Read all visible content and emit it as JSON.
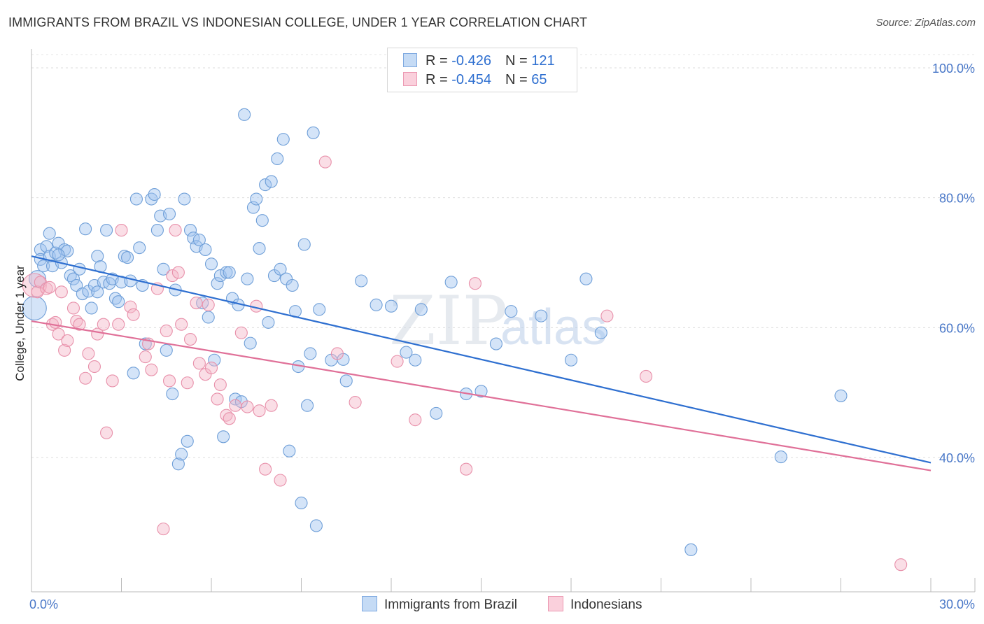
{
  "header": {
    "title": "IMMIGRANTS FROM BRAZIL VS INDONESIAN COLLEGE, UNDER 1 YEAR CORRELATION CHART",
    "source": "Source: ZipAtlas.com"
  },
  "watermark": {
    "zip": "ZIP",
    "atlas": "atlas"
  },
  "legend": {
    "rows": [
      {
        "r_label": "R = ",
        "r_value": "-0.426",
        "n_label": "N = ",
        "n_value": "121",
        "color": "#9fc3ef"
      },
      {
        "r_label": "R = ",
        "r_value": "-0.454",
        "n_label": "N = ",
        "n_value": "65",
        "color": "#f4b6c8"
      }
    ]
  },
  "bottom_legend": {
    "items": [
      {
        "label": "Immigrants from Brazil",
        "color": "#9fc3ef"
      },
      {
        "label": "Indonesians",
        "color": "#f4b6c8"
      }
    ]
  },
  "chart_data": {
    "type": "scatter",
    "title": "IMMIGRANTS FROM BRAZIL VS INDONESIAN COLLEGE, UNDER 1 YEAR CORRELATION CHART",
    "xlabel": "",
    "ylabel": "College, Under 1 year",
    "xlim": [
      0,
      30
    ],
    "ylim": [
      22,
      103
    ],
    "x_tick_labels": [
      "0.0%",
      "30.0%"
    ],
    "y_ticks": [
      40,
      60,
      80,
      100
    ],
    "y_tick_labels": [
      "40.0%",
      "60.0%",
      "80.0%",
      "100.0%"
    ],
    "grid": true,
    "legend_position": "top-center",
    "series": [
      {
        "name": "Immigrants from Brazil",
        "color": "#9fc3ef",
        "stroke": "#6f9fd8",
        "line_color": "#2e6fd0",
        "trend": {
          "x": [
            0,
            30
          ],
          "y": [
            71.0,
            39.2
          ]
        },
        "points": [
          [
            0.1,
            63
          ],
          [
            0.2,
            67.5
          ],
          [
            0.3,
            72
          ],
          [
            0.3,
            70.5
          ],
          [
            0.4,
            69.5
          ],
          [
            0.5,
            72.5
          ],
          [
            0.6,
            74.5
          ],
          [
            0.6,
            71
          ],
          [
            0.7,
            69.5
          ],
          [
            0.8,
            71.5
          ],
          [
            0.9,
            73
          ],
          [
            1.0,
            70
          ],
          [
            1.1,
            72
          ],
          [
            1.2,
            71.8
          ],
          [
            1.3,
            68
          ],
          [
            1.4,
            67.5
          ],
          [
            1.5,
            66.5
          ],
          [
            1.6,
            69
          ],
          [
            1.7,
            65.2
          ],
          [
            1.8,
            75.2
          ],
          [
            1.9,
            65.6
          ],
          [
            2.0,
            63
          ],
          [
            2.1,
            66.5
          ],
          [
            2.2,
            71
          ],
          [
            2.3,
            69.4
          ],
          [
            2.4,
            67
          ],
          [
            2.5,
            75
          ],
          [
            2.6,
            66.8
          ],
          [
            2.7,
            67.5
          ],
          [
            2.8,
            64.5
          ],
          [
            2.9,
            64
          ],
          [
            3.0,
            67
          ],
          [
            3.1,
            71
          ],
          [
            3.2,
            70.8
          ],
          [
            3.3,
            67.2
          ],
          [
            3.4,
            53
          ],
          [
            3.5,
            79.8
          ],
          [
            3.6,
            72.3
          ],
          [
            3.7,
            66.5
          ],
          [
            3.8,
            57.5
          ],
          [
            4.0,
            79.8
          ],
          [
            4.1,
            80.5
          ],
          [
            4.2,
            75
          ],
          [
            4.3,
            77.2
          ],
          [
            4.4,
            69
          ],
          [
            4.5,
            56.5
          ],
          [
            4.6,
            77.5
          ],
          [
            4.7,
            49.8
          ],
          [
            4.8,
            65.8
          ],
          [
            4.9,
            39
          ],
          [
            5.0,
            40.5
          ],
          [
            5.1,
            79.8
          ],
          [
            5.2,
            42.5
          ],
          [
            5.3,
            75
          ],
          [
            5.4,
            73.8
          ],
          [
            5.5,
            72.5
          ],
          [
            5.6,
            73.5
          ],
          [
            5.7,
            63.8
          ],
          [
            5.8,
            72
          ],
          [
            5.9,
            61.6
          ],
          [
            6.0,
            69.8
          ],
          [
            6.1,
            55
          ],
          [
            6.2,
            66.8
          ],
          [
            6.3,
            68
          ],
          [
            6.4,
            43.2
          ],
          [
            6.5,
            68.5
          ],
          [
            6.6,
            68.5
          ],
          [
            6.7,
            64.5
          ],
          [
            6.8,
            49
          ],
          [
            6.9,
            63.5
          ],
          [
            7.0,
            48.6
          ],
          [
            7.1,
            92.8
          ],
          [
            7.2,
            67.5
          ],
          [
            7.3,
            57.6
          ],
          [
            7.4,
            78.5
          ],
          [
            7.5,
            79.8
          ],
          [
            7.6,
            72.2
          ],
          [
            7.7,
            76.5
          ],
          [
            7.8,
            82
          ],
          [
            7.9,
            60.8
          ],
          [
            8.0,
            82.5
          ],
          [
            8.1,
            68
          ],
          [
            8.2,
            86
          ],
          [
            8.3,
            69
          ],
          [
            8.4,
            89
          ],
          [
            8.5,
            67.5
          ],
          [
            8.6,
            41
          ],
          [
            8.7,
            66.5
          ],
          [
            8.8,
            62.5
          ],
          [
            8.9,
            54
          ],
          [
            9.0,
            33
          ],
          [
            9.1,
            72.8
          ],
          [
            9.2,
            48
          ],
          [
            9.3,
            56
          ],
          [
            9.4,
            90
          ],
          [
            9.5,
            29.5
          ],
          [
            9.6,
            62.8
          ],
          [
            10.0,
            55
          ],
          [
            10.5,
            51.8
          ],
          [
            11.0,
            67.2
          ],
          [
            11.5,
            63.5
          ],
          [
            12.0,
            63.3
          ],
          [
            12.5,
            56.2
          ],
          [
            12.8,
            55
          ],
          [
            13.0,
            62.8
          ],
          [
            13.5,
            46.8
          ],
          [
            14.0,
            67
          ],
          [
            14.5,
            49.8
          ],
          [
            15.0,
            50.2
          ],
          [
            15.5,
            57.5
          ],
          [
            16.0,
            62.5
          ],
          [
            17.0,
            61.8
          ],
          [
            18.0,
            55
          ],
          [
            18.5,
            67.5
          ],
          [
            19.0,
            59.2
          ],
          [
            22.0,
            25.8
          ],
          [
            25.0,
            40.1
          ],
          [
            27.0,
            49.5
          ],
          [
            10.4,
            55.1
          ],
          [
            2.2,
            65.5
          ],
          [
            0.9,
            71.2
          ]
        ]
      },
      {
        "name": "Indonesians",
        "color": "#f4b6c8",
        "stroke": "#e890aa",
        "line_color": "#e07098",
        "trend": {
          "x": [
            0,
            30
          ],
          "y": [
            61.0,
            38.0
          ]
        },
        "points": [
          [
            0.1,
            66.5
          ],
          [
            0.2,
            65.5
          ],
          [
            0.3,
            67
          ],
          [
            0.5,
            66
          ],
          [
            0.6,
            66.2
          ],
          [
            0.7,
            60.5
          ],
          [
            0.8,
            60.8
          ],
          [
            0.9,
            59
          ],
          [
            1.0,
            65.5
          ],
          [
            1.1,
            56.5
          ],
          [
            1.2,
            58
          ],
          [
            1.4,
            63
          ],
          [
            1.5,
            61
          ],
          [
            1.6,
            60.5
          ],
          [
            1.8,
            52.2
          ],
          [
            1.9,
            56
          ],
          [
            2.1,
            54
          ],
          [
            2.2,
            59
          ],
          [
            2.4,
            60.5
          ],
          [
            2.5,
            43.8
          ],
          [
            2.7,
            51.8
          ],
          [
            2.9,
            60.5
          ],
          [
            3.0,
            75
          ],
          [
            3.3,
            63.2
          ],
          [
            3.4,
            62
          ],
          [
            3.8,
            55.5
          ],
          [
            3.9,
            57.5
          ],
          [
            4.0,
            53.5
          ],
          [
            4.2,
            66
          ],
          [
            4.4,
            29
          ],
          [
            4.5,
            59.5
          ],
          [
            4.6,
            51.8
          ],
          [
            4.7,
            68
          ],
          [
            4.8,
            75
          ],
          [
            4.9,
            68.5
          ],
          [
            5.0,
            60.5
          ],
          [
            5.2,
            51.5
          ],
          [
            5.3,
            58.2
          ],
          [
            5.5,
            63.8
          ],
          [
            5.6,
            54.5
          ],
          [
            5.8,
            52.8
          ],
          [
            5.9,
            63.5
          ],
          [
            6.0,
            53.8
          ],
          [
            6.2,
            49
          ],
          [
            6.3,
            51.2
          ],
          [
            6.5,
            46.5
          ],
          [
            6.6,
            46
          ],
          [
            6.8,
            48
          ],
          [
            7.0,
            59.2
          ],
          [
            7.2,
            47.8
          ],
          [
            7.5,
            63.3
          ],
          [
            7.6,
            47.2
          ],
          [
            7.8,
            38.2
          ],
          [
            8.0,
            48
          ],
          [
            8.3,
            36.5
          ],
          [
            9.8,
            85.5
          ],
          [
            10.2,
            56
          ],
          [
            10.8,
            48.5
          ],
          [
            12.2,
            54.8
          ],
          [
            12.8,
            45.8
          ],
          [
            14.5,
            38.2
          ],
          [
            14.8,
            66.8
          ],
          [
            19.2,
            61.8
          ],
          [
            20.5,
            52.5
          ],
          [
            29.0,
            23.5
          ]
        ]
      }
    ]
  }
}
